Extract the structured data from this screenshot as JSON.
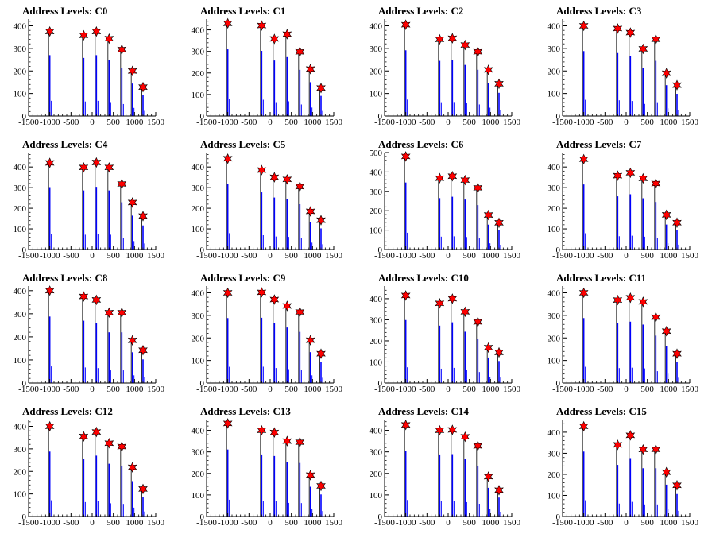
{
  "chart_data": [
    {
      "title": "Address Levels: C0",
      "type": "bar",
      "ylim": [
        0,
        430
      ],
      "yticks": [
        0,
        100,
        200,
        300,
        400
      ],
      "xlim": [
        -1500,
        1500
      ],
      "xticks": [
        -1500,
        -1000,
        -500,
        0,
        500,
        1000,
        1500
      ],
      "peaks": [
        {
          "x": -1000,
          "y": 375
        },
        {
          "x": -200,
          "y": 358
        },
        {
          "x": 100,
          "y": 375
        },
        {
          "x": 400,
          "y": 343
        },
        {
          "x": 700,
          "y": 295
        },
        {
          "x": 950,
          "y": 200
        },
        {
          "x": 1200,
          "y": 128
        }
      ]
    },
    {
      "title": "Address Levels: C1",
      "type": "bar",
      "ylim": [
        0,
        450
      ],
      "yticks": [
        0,
        100,
        200,
        300,
        400
      ],
      "xlim": [
        -1500,
        1500
      ],
      "xticks": [
        -1500,
        -1000,
        -500,
        0,
        500,
        1000,
        1500
      ],
      "peaks": [
        {
          "x": -1000,
          "y": 430
        },
        {
          "x": -200,
          "y": 420
        },
        {
          "x": 100,
          "y": 358
        },
        {
          "x": 400,
          "y": 380
        },
        {
          "x": 700,
          "y": 298
        },
        {
          "x": 950,
          "y": 218
        },
        {
          "x": 1200,
          "y": 130
        }
      ]
    },
    {
      "title": "Address Levels: C2",
      "type": "bar",
      "ylim": [
        0,
        430
      ],
      "yticks": [
        0,
        100,
        200,
        300,
        400
      ],
      "xlim": [
        -1500,
        1500
      ],
      "xticks": [
        -1500,
        -1000,
        -500,
        0,
        500,
        1000,
        1500
      ],
      "peaks": [
        {
          "x": -1000,
          "y": 405
        },
        {
          "x": -200,
          "y": 340
        },
        {
          "x": 100,
          "y": 345
        },
        {
          "x": 400,
          "y": 315
        },
        {
          "x": 700,
          "y": 285
        },
        {
          "x": 950,
          "y": 205
        },
        {
          "x": 1200,
          "y": 143
        }
      ]
    },
    {
      "title": "Address Levels: C3",
      "type": "bar",
      "ylim": [
        0,
        430
      ],
      "yticks": [
        0,
        100,
        200,
        300,
        400
      ],
      "xlim": [
        -1500,
        1500
      ],
      "xticks": [
        -1500,
        -1000,
        -500,
        0,
        500,
        1000,
        1500
      ],
      "peaks": [
        {
          "x": -1000,
          "y": 400
        },
        {
          "x": -200,
          "y": 388
        },
        {
          "x": 100,
          "y": 370
        },
        {
          "x": 400,
          "y": 298
        },
        {
          "x": 700,
          "y": 340
        },
        {
          "x": 950,
          "y": 190
        },
        {
          "x": 1200,
          "y": 137
        }
      ]
    },
    {
      "title": "Address Levels: C4",
      "type": "bar",
      "ylim": [
        0,
        470
      ],
      "yticks": [
        0,
        100,
        200,
        300,
        400
      ],
      "xlim": [
        -1500,
        1500
      ],
      "xticks": [
        -1500,
        -1000,
        -500,
        0,
        500,
        1000,
        1500
      ],
      "peaks": [
        {
          "x": -1000,
          "y": 420
        },
        {
          "x": -200,
          "y": 398
        },
        {
          "x": 100,
          "y": 422
        },
        {
          "x": 400,
          "y": 398
        },
        {
          "x": 700,
          "y": 318
        },
        {
          "x": 950,
          "y": 228
        },
        {
          "x": 1200,
          "y": 162
        }
      ]
    },
    {
      "title": "Address Levels: C5",
      "type": "bar",
      "ylim": [
        0,
        470
      ],
      "yticks": [
        0,
        100,
        200,
        300,
        400
      ],
      "xlim": [
        -1500,
        1500
      ],
      "xticks": [
        -1500,
        -1000,
        -500,
        0,
        500,
        1000,
        1500
      ],
      "peaks": [
        {
          "x": -1000,
          "y": 440
        },
        {
          "x": -200,
          "y": 385
        },
        {
          "x": 100,
          "y": 350
        },
        {
          "x": 400,
          "y": 340
        },
        {
          "x": 700,
          "y": 305
        },
        {
          "x": 950,
          "y": 185
        },
        {
          "x": 1200,
          "y": 142
        }
      ]
    },
    {
      "title": "Address Levels: C6",
      "type": "bar",
      "ylim": [
        0,
        500
      ],
      "yticks": [
        0,
        100,
        200,
        300,
        400,
        500
      ],
      "xlim": [
        -1500,
        1500
      ],
      "xticks": [
        -1500,
        -1000,
        -500,
        0,
        500,
        1000,
        1500
      ],
      "peaks": [
        {
          "x": -1000,
          "y": 480
        },
        {
          "x": -200,
          "y": 368
        },
        {
          "x": 100,
          "y": 378
        },
        {
          "x": 400,
          "y": 358
        },
        {
          "x": 700,
          "y": 318
        },
        {
          "x": 950,
          "y": 178
        },
        {
          "x": 1200,
          "y": 138
        }
      ]
    },
    {
      "title": "Address Levels: C7",
      "type": "bar",
      "ylim": [
        0,
        470
      ],
      "yticks": [
        0,
        100,
        200,
        300,
        400
      ],
      "xlim": [
        -1500,
        1500
      ],
      "xticks": [
        -1500,
        -1000,
        -500,
        0,
        500,
        1000,
        1500
      ],
      "peaks": [
        {
          "x": -1000,
          "y": 438
        },
        {
          "x": -200,
          "y": 358
        },
        {
          "x": 100,
          "y": 372
        },
        {
          "x": 400,
          "y": 345
        },
        {
          "x": 700,
          "y": 320
        },
        {
          "x": 950,
          "y": 168
        },
        {
          "x": 1200,
          "y": 130
        }
      ]
    },
    {
      "title": "Address Levels: C8",
      "type": "bar",
      "ylim": [
        0,
        420
      ],
      "yticks": [
        0,
        100,
        200,
        300,
        400
      ],
      "xlim": [
        -1500,
        1500
      ],
      "xticks": [
        -1500,
        -1000,
        -500,
        0,
        500,
        1000,
        1500
      ],
      "peaks": [
        {
          "x": -1000,
          "y": 400
        },
        {
          "x": -200,
          "y": 375
        },
        {
          "x": 100,
          "y": 360
        },
        {
          "x": 400,
          "y": 305
        },
        {
          "x": 700,
          "y": 305
        },
        {
          "x": 950,
          "y": 185
        },
        {
          "x": 1200,
          "y": 142
        }
      ]
    },
    {
      "title": "Address Levels: C9",
      "type": "bar",
      "ylim": [
        0,
        430
      ],
      "yticks": [
        0,
        100,
        200,
        300,
        400
      ],
      "xlim": [
        -1500,
        1500
      ],
      "xticks": [
        -1500,
        -1000,
        -500,
        0,
        500,
        1000,
        1500
      ],
      "peaks": [
        {
          "x": -1000,
          "y": 400
        },
        {
          "x": -200,
          "y": 402
        },
        {
          "x": 100,
          "y": 370
        },
        {
          "x": 400,
          "y": 342
        },
        {
          "x": 700,
          "y": 315
        },
        {
          "x": 950,
          "y": 190
        },
        {
          "x": 1200,
          "y": 130
        }
      ]
    },
    {
      "title": "Address Levels: C10",
      "type": "bar",
      "ylim": [
        0,
        460
      ],
      "yticks": [
        0,
        100,
        200,
        300,
        400
      ],
      "xlim": [
        -1500,
        1500
      ],
      "xticks": [
        -1500,
        -1000,
        -500,
        0,
        500,
        1000,
        1500
      ],
      "peaks": [
        {
          "x": -1000,
          "y": 415
        },
        {
          "x": -200,
          "y": 378
        },
        {
          "x": 100,
          "y": 400
        },
        {
          "x": 400,
          "y": 338
        },
        {
          "x": 700,
          "y": 290
        },
        {
          "x": 950,
          "y": 168
        },
        {
          "x": 1200,
          "y": 145
        }
      ]
    },
    {
      "title": "Address Levels: C11",
      "type": "bar",
      "ylim": [
        0,
        430
      ],
      "yticks": [
        0,
        100,
        200,
        300,
        400
      ],
      "xlim": [
        -1500,
        1500
      ],
      "xticks": [
        -1500,
        -1000,
        -500,
        0,
        500,
        1000,
        1500
      ],
      "peaks": [
        {
          "x": -1000,
          "y": 400
        },
        {
          "x": -200,
          "y": 368
        },
        {
          "x": 100,
          "y": 378
        },
        {
          "x": 400,
          "y": 360
        },
        {
          "x": 700,
          "y": 292
        },
        {
          "x": 950,
          "y": 230
        },
        {
          "x": 1200,
          "y": 130
        }
      ]
    },
    {
      "title": "Address Levels: C12",
      "type": "bar",
      "ylim": [
        0,
        430
      ],
      "yticks": [
        0,
        100,
        200,
        300,
        400
      ],
      "xlim": [
        -1500,
        1500
      ],
      "xticks": [
        -1500,
        -1000,
        -500,
        0,
        500,
        1000,
        1500
      ],
      "peaks": [
        {
          "x": -1000,
          "y": 400
        },
        {
          "x": -200,
          "y": 355
        },
        {
          "x": 100,
          "y": 375
        },
        {
          "x": 400,
          "y": 325
        },
        {
          "x": 700,
          "y": 310
        },
        {
          "x": 950,
          "y": 218
        },
        {
          "x": 1200,
          "y": 122
        }
      ]
    },
    {
      "title": "Address Levels: C13",
      "type": "bar",
      "ylim": [
        0,
        450
      ],
      "yticks": [
        0,
        100,
        200,
        300,
        400
      ],
      "xlim": [
        -1500,
        1500
      ],
      "xticks": [
        -1500,
        -1000,
        -500,
        0,
        500,
        1000,
        1500
      ],
      "peaks": [
        {
          "x": -1000,
          "y": 432
        },
        {
          "x": -200,
          "y": 400
        },
        {
          "x": 100,
          "y": 390
        },
        {
          "x": 400,
          "y": 350
        },
        {
          "x": 700,
          "y": 345
        },
        {
          "x": 950,
          "y": 192
        },
        {
          "x": 1200,
          "y": 142
        }
      ]
    },
    {
      "title": "Address Levels: C14",
      "type": "bar",
      "ylim": [
        0,
        450
      ],
      "yticks": [
        0,
        100,
        200,
        300,
        400
      ],
      "xlim": [
        -1500,
        1500
      ],
      "xticks": [
        -1500,
        -1000,
        -500,
        0,
        500,
        1000,
        1500
      ],
      "peaks": [
        {
          "x": -1000,
          "y": 425
        },
        {
          "x": -200,
          "y": 400
        },
        {
          "x": 100,
          "y": 402
        },
        {
          "x": 400,
          "y": 370
        },
        {
          "x": 700,
          "y": 328
        },
        {
          "x": 950,
          "y": 185
        },
        {
          "x": 1200,
          "y": 122
        }
      ]
    },
    {
      "title": "Address Levels: C15",
      "type": "bar",
      "ylim": [
        0,
        460
      ],
      "yticks": [
        0,
        100,
        200,
        300,
        400
      ],
      "xlim": [
        -1500,
        1500
      ],
      "xticks": [
        -1500,
        -1000,
        -500,
        0,
        500,
        1000,
        1500
      ],
      "peaks": [
        {
          "x": -1000,
          "y": 428
        },
        {
          "x": -200,
          "y": 340
        },
        {
          "x": 100,
          "y": 385
        },
        {
          "x": 400,
          "y": 318
        },
        {
          "x": 700,
          "y": 318
        },
        {
          "x": 950,
          "y": 210
        },
        {
          "x": 1200,
          "y": 148
        }
      ]
    }
  ],
  "colors": {
    "bar": "#0000ff",
    "marker": "#ff0000",
    "marker_edge": "#000000",
    "axis": "#000000"
  }
}
